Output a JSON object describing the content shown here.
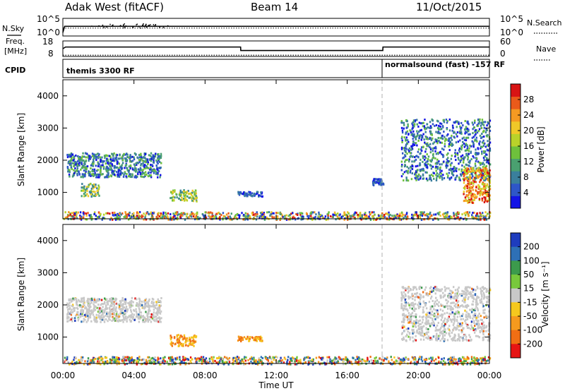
{
  "header": {
    "station": "Adak West (fitACF)",
    "beam": "Beam 14",
    "date": "11/Oct/2015"
  },
  "side_labels": {
    "nsky": "N.Sky",
    "nsearch": "N.Search",
    "freq_line1": "Freq.",
    "freq_line2": "[MHz]",
    "nave": "Nave",
    "cpid": "CPID"
  },
  "mode_labels": {
    "left": "themis 3300 RF",
    "right": "normalsound (fast) -157 RF"
  },
  "chart_data": [
    {
      "type": "line",
      "name": "noise-panel",
      "left_ticks": [
        "10^5",
        "10^0"
      ],
      "right_ticks": [
        "10^5",
        "10^0"
      ],
      "xlim": [
        0,
        24
      ],
      "series": [
        {
          "name": "N.Sky",
          "x": [
            0,
            0.1,
            24
          ],
          "values": [
            0.2,
            0.55,
            0.55
          ]
        },
        {
          "name": "N.Search",
          "x": [
            0,
            24
          ],
          "values": [
            0.45,
            0.45
          ]
        }
      ]
    },
    {
      "type": "line",
      "name": "frequency-panel",
      "ylabel_left": "Freq. [MHz]",
      "left_ticks": [
        "18",
        "8"
      ],
      "right_ticks": [
        "60",
        "0"
      ],
      "xlim": [
        0,
        24
      ],
      "series": [
        {
          "name": "Freq.",
          "x": [
            0,
            0.15,
            10,
            10.01,
            18,
            18.01,
            24
          ],
          "values": [
            12,
            13.3,
            13.3,
            10.6,
            10.6,
            13.3,
            13.3
          ]
        },
        {
          "name": "Nave",
          "x": [
            0,
            24
          ],
          "values": [
            7,
            7
          ]
        }
      ]
    },
    {
      "type": "heatmap",
      "name": "power-panel",
      "ylabel": "Slant Range [km]",
      "yticks": [
        1000,
        2000,
        3000,
        4000
      ],
      "ylim": [
        180,
        4500
      ],
      "xlim": [
        0,
        24
      ],
      "colorbar": {
        "label": "Power [dB]",
        "ticks": [
          "4",
          "8",
          "12",
          "16",
          "20",
          "24",
          "28"
        ],
        "colors": [
          "#1414e6",
          "#2e56c8",
          "#3a7f9c",
          "#4aa070",
          "#6ec03c",
          "#b9d22a",
          "#f0c828",
          "#f59a22",
          "#ea5a1a",
          "#d81414"
        ]
      },
      "regions": [
        {
          "t0": 0.2,
          "t1": 5.5,
          "r0": 1500,
          "r1": 2250,
          "level": "low-mid"
        },
        {
          "t0": 1.0,
          "t1": 2.0,
          "r0": 900,
          "r1": 1300,
          "level": "mid"
        },
        {
          "t0": 6.0,
          "t1": 7.5,
          "r0": 750,
          "r1": 1100,
          "level": "mid"
        },
        {
          "t0": 9.8,
          "t1": 11.2,
          "r0": 900,
          "r1": 1050,
          "level": "low"
        },
        {
          "t0": 17.4,
          "t1": 18.0,
          "r0": 1250,
          "r1": 1450,
          "level": "low"
        },
        {
          "t0": 19.0,
          "t1": 24.0,
          "r0": 1400,
          "r1": 3300,
          "level": "low-mid"
        },
        {
          "t0": 22.5,
          "t1": 24.0,
          "r0": 700,
          "r1": 1800,
          "level": "high"
        },
        {
          "t0": 0.0,
          "t1": 24.0,
          "r0": 180,
          "r1": 420,
          "level": "mixed"
        }
      ]
    },
    {
      "type": "heatmap",
      "name": "velocity-panel",
      "ylabel": "Slant Range [km]",
      "yticks": [
        1000,
        2000,
        3000,
        4000
      ],
      "ylim": [
        180,
        4500
      ],
      "xlim": [
        0,
        24
      ],
      "colorbar": {
        "label": "Velocity [m s⁻¹]",
        "ticks": [
          "200",
          "100",
          "50",
          "15",
          "-15",
          "-50",
          "-100",
          "-200"
        ],
        "colors": [
          "#1e3cbe",
          "#2e70b6",
          "#3c9a4c",
          "#78c83c",
          "#c8c8c8",
          "#f5c81e",
          "#f59a1e",
          "#f06e14",
          "#e61414"
        ]
      },
      "regions": [
        {
          "t0": 0.2,
          "t1": 5.5,
          "r0": 1500,
          "r1": 2250,
          "level": "ground"
        },
        {
          "t0": 6.0,
          "t1": 7.5,
          "r0": 750,
          "r1": 1100,
          "level": "negative"
        },
        {
          "t0": 9.8,
          "t1": 11.2,
          "r0": 900,
          "r1": 1050,
          "level": "negative"
        },
        {
          "t0": 19.0,
          "t1": 24.0,
          "r0": 900,
          "r1": 2600,
          "level": "ground"
        },
        {
          "t0": 0.0,
          "t1": 24.0,
          "r0": 180,
          "r1": 420,
          "level": "mixed"
        }
      ]
    }
  ],
  "x_axis": {
    "ticks": [
      "00:00",
      "04:00",
      "08:00",
      "12:00",
      "16:00",
      "20:00",
      "00:00"
    ],
    "label": "Time UT"
  }
}
